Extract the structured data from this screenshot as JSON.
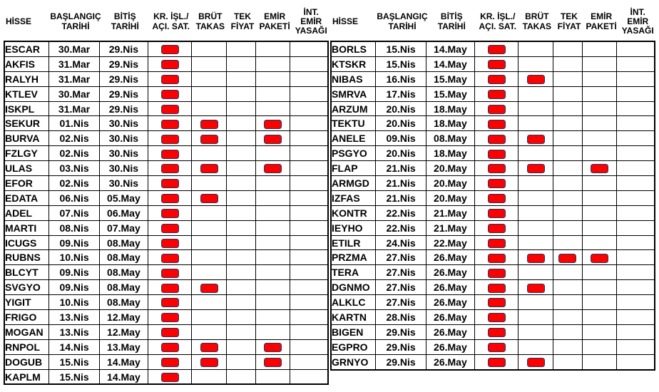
{
  "page": {
    "background": "#ffffff",
    "grid_color": "#000000",
    "text_color": "#000000"
  },
  "marker": {
    "color": "#ff0000",
    "border_color": "#1f3864",
    "meaning": "restriction-active"
  },
  "columns": [
    {
      "key": "ticker",
      "label": "HİSSE"
    },
    {
      "key": "start",
      "label": "BAŞLANGIÇ\nTARİHİ"
    },
    {
      "key": "end",
      "label": "BİTİŞ\nTARİHİ"
    },
    {
      "key": "kr",
      "label": "KR. İŞL./\nAÇI. SAT."
    },
    {
      "key": "brut",
      "label": "BRÜT\nTAKAS"
    },
    {
      "key": "tek",
      "label": "TEK\nFİYAT"
    },
    {
      "key": "emir",
      "label": "EMİR\nPAKETİ"
    },
    {
      "key": "int",
      "label": "İNT.\nEMİR\nYASAĞI"
    }
  ],
  "tables": [
    {
      "name": "left",
      "rows": [
        {
          "ticker": "ESCAR",
          "start": "30.Mar",
          "end": "29.Nis",
          "flags": [
            1,
            0,
            0,
            0,
            0
          ]
        },
        {
          "ticker": "AKFIS",
          "start": "31.Mar",
          "end": "29.Nis",
          "flags": [
            1,
            0,
            0,
            0,
            0
          ]
        },
        {
          "ticker": "RALYH",
          "start": "31.Mar",
          "end": "29.Nis",
          "flags": [
            1,
            0,
            0,
            0,
            0
          ]
        },
        {
          "ticker": "KTLEV",
          "start": "30.Mar",
          "end": "29.Nis",
          "flags": [
            1,
            0,
            0,
            0,
            0
          ]
        },
        {
          "ticker": "ISKPL",
          "start": "31.Mar",
          "end": "29.Nis",
          "flags": [
            1,
            0,
            0,
            0,
            0
          ]
        },
        {
          "ticker": "SEKUR",
          "start": "01.Nis",
          "end": "30.Nis",
          "flags": [
            1,
            1,
            0,
            1,
            0
          ]
        },
        {
          "ticker": "BURVA",
          "start": "02.Nis",
          "end": "30.Nis",
          "flags": [
            1,
            1,
            0,
            1,
            0
          ]
        },
        {
          "ticker": "FZLGY",
          "start": "02.Nis",
          "end": "30.Nis",
          "flags": [
            1,
            0,
            0,
            0,
            0
          ]
        },
        {
          "ticker": "ULAS",
          "start": "03.Nis",
          "end": "30.Nis",
          "flags": [
            1,
            1,
            0,
            1,
            0
          ]
        },
        {
          "ticker": "EFOR",
          "start": "02.Nis",
          "end": "30.Nis",
          "flags": [
            1,
            0,
            0,
            0,
            0
          ]
        },
        {
          "ticker": "EDATA",
          "start": "06.Nis",
          "end": "05.May",
          "flags": [
            1,
            1,
            0,
            0,
            0
          ]
        },
        {
          "ticker": "ADEL",
          "start": "07.Nis",
          "end": "06.May",
          "flags": [
            1,
            0,
            0,
            0,
            0
          ]
        },
        {
          "ticker": "MARTI",
          "start": "08.Nis",
          "end": "07.May",
          "flags": [
            1,
            0,
            0,
            0,
            0
          ]
        },
        {
          "ticker": "ICUGS",
          "start": "09.Nis",
          "end": "08.May",
          "flags": [
            1,
            0,
            0,
            0,
            0
          ]
        },
        {
          "ticker": "RUBNS",
          "start": "10.Nis",
          "end": "08.May",
          "flags": [
            1,
            0,
            0,
            0,
            0
          ]
        },
        {
          "ticker": "BLCYT",
          "start": "09.Nis",
          "end": "08.May",
          "flags": [
            1,
            0,
            0,
            0,
            0
          ]
        },
        {
          "ticker": "SVGYO",
          "start": "09.Nis",
          "end": "08.May",
          "flags": [
            1,
            1,
            0,
            0,
            0
          ]
        },
        {
          "ticker": "YIGIT",
          "start": "10.Nis",
          "end": "08.May",
          "flags": [
            1,
            0,
            0,
            0,
            0
          ]
        },
        {
          "ticker": "FRIGO",
          "start": "13.Nis",
          "end": "12.May",
          "flags": [
            1,
            0,
            0,
            0,
            0
          ]
        },
        {
          "ticker": "MOGAN",
          "start": "13.Nis",
          "end": "12.May",
          "flags": [
            1,
            0,
            0,
            0,
            0
          ]
        },
        {
          "ticker": "RNPOL",
          "start": "14.Nis",
          "end": "13.May",
          "flags": [
            1,
            1,
            0,
            1,
            0
          ]
        },
        {
          "ticker": "DOGUB",
          "start": "15.Nis",
          "end": "14.May",
          "flags": [
            1,
            1,
            0,
            1,
            0
          ]
        },
        {
          "ticker": "KAPLM",
          "start": "15.Nis",
          "end": "14.May",
          "flags": [
            1,
            0,
            0,
            0,
            0
          ]
        }
      ]
    },
    {
      "name": "right",
      "rows": [
        {
          "ticker": "BORLS",
          "start": "15.Nis",
          "end": "14.May",
          "flags": [
            1,
            0,
            0,
            0,
            0
          ]
        },
        {
          "ticker": "KTSKR",
          "start": "15.Nis",
          "end": "14.May",
          "flags": [
            1,
            0,
            0,
            0,
            0
          ]
        },
        {
          "ticker": "NIBAS",
          "start": "16.Nis",
          "end": "15.May",
          "flags": [
            1,
            1,
            0,
            0,
            0
          ]
        },
        {
          "ticker": "SMRVA",
          "start": "17.Nis",
          "end": "15.May",
          "flags": [
            1,
            0,
            0,
            0,
            0
          ]
        },
        {
          "ticker": "ARZUM",
          "start": "20.Nis",
          "end": "18.May",
          "flags": [
            1,
            0,
            0,
            0,
            0
          ]
        },
        {
          "ticker": "TEKTU",
          "start": "20.Nis",
          "end": "18.May",
          "flags": [
            1,
            0,
            0,
            0,
            0
          ]
        },
        {
          "ticker": "ANELE",
          "start": "09.Nis",
          "end": "08.May",
          "flags": [
            1,
            1,
            0,
            0,
            0
          ]
        },
        {
          "ticker": "PSGYO",
          "start": "20.Nis",
          "end": "18.May",
          "flags": [
            1,
            0,
            0,
            0,
            0
          ]
        },
        {
          "ticker": "FLAP",
          "start": "21.Nis",
          "end": "20.May",
          "flags": [
            1,
            1,
            0,
            1,
            0
          ]
        },
        {
          "ticker": "ARMGD",
          "start": "21.Nis",
          "end": "20.May",
          "flags": [
            1,
            0,
            0,
            0,
            0
          ]
        },
        {
          "ticker": "IZFAS",
          "start": "21.Nis",
          "end": "20.May",
          "flags": [
            1,
            0,
            0,
            0,
            0
          ]
        },
        {
          "ticker": "KONTR",
          "start": "22.Nis",
          "end": "21.May",
          "flags": [
            1,
            0,
            0,
            0,
            0
          ]
        },
        {
          "ticker": "IEYHO",
          "start": "22.Nis",
          "end": "21.May",
          "flags": [
            1,
            0,
            0,
            0,
            0
          ]
        },
        {
          "ticker": "ETILR",
          "start": "24.Nis",
          "end": "22.May",
          "flags": [
            1,
            0,
            0,
            0,
            0
          ]
        },
        {
          "ticker": "PRZMA",
          "start": "27.Nis",
          "end": "26.May",
          "flags": [
            1,
            1,
            1,
            1,
            0
          ]
        },
        {
          "ticker": "TERA",
          "start": "27.Nis",
          "end": "26.May",
          "flags": [
            1,
            0,
            0,
            0,
            0
          ]
        },
        {
          "ticker": "DGNMO",
          "start": "27.Nis",
          "end": "26.May",
          "flags": [
            1,
            1,
            0,
            0,
            0
          ]
        },
        {
          "ticker": "ALKLC",
          "start": "27.Nis",
          "end": "26.May",
          "flags": [
            1,
            0,
            0,
            0,
            0
          ]
        },
        {
          "ticker": "KARTN",
          "start": "28.Nis",
          "end": "26.May",
          "flags": [
            1,
            0,
            0,
            0,
            0
          ]
        },
        {
          "ticker": "BIGEN",
          "start": "29.Nis",
          "end": "26.May",
          "flags": [
            1,
            0,
            0,
            0,
            0
          ]
        },
        {
          "ticker": "EGPRO",
          "start": "29.Nis",
          "end": "26.May",
          "flags": [
            1,
            0,
            0,
            0,
            0
          ]
        },
        {
          "ticker": "GRNYO",
          "start": "29.Nis",
          "end": "26.May",
          "flags": [
            1,
            1,
            0,
            0,
            0
          ]
        }
      ]
    }
  ]
}
